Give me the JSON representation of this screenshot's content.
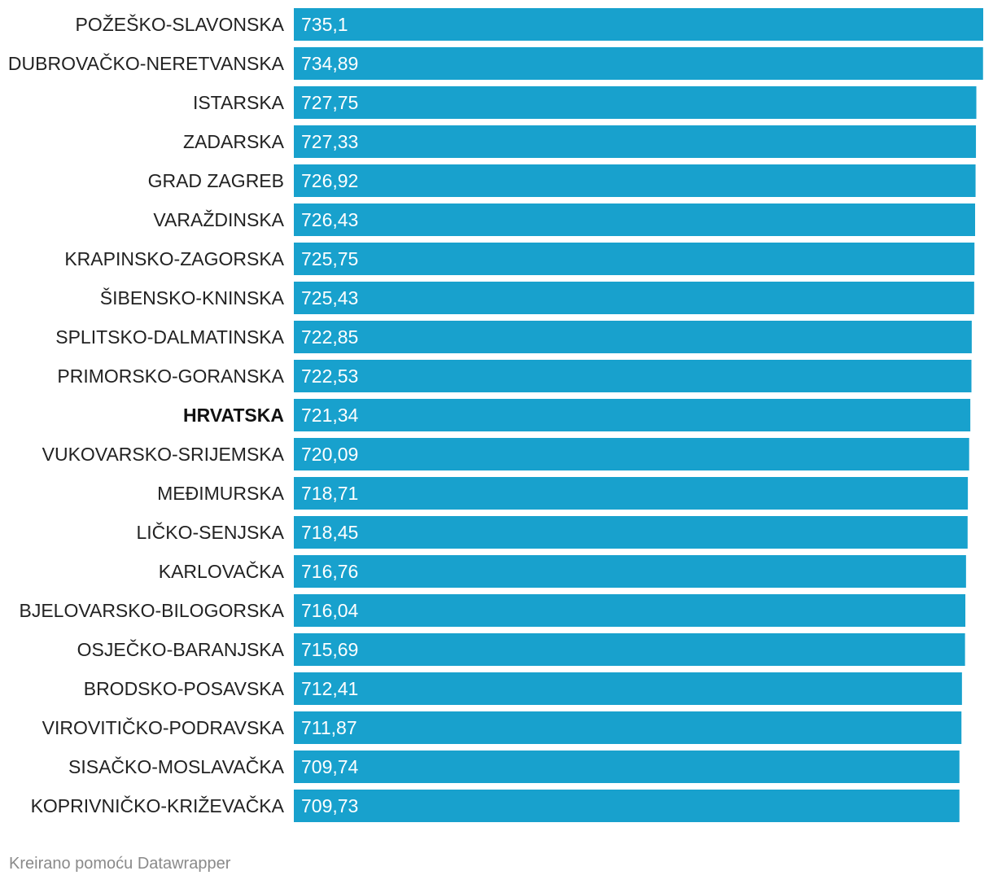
{
  "chart_data": {
    "type": "bar",
    "orientation": "horizontal",
    "categories": [
      "POŽEŠKO-SLAVONSKA",
      "DUBROVAČKO-NERETVANSKA",
      "ISTARSKA",
      "ZADARSKA",
      "GRAD ZAGREB",
      "VARAŽDINSKA",
      "KRAPINSKO-ZAGORSKA",
      "ŠIBENSKO-KNINSKA",
      "SPLITSKO-DALMATINSKA",
      "PRIMORSKO-GORANSKA",
      "HRVATSKA",
      "VUKOVARSKO-SRIJEMSKA",
      "MEĐIMURSKA",
      "LIČKO-SENJSKA",
      "KARLOVAČKA",
      "BJELOVARSKO-BILOGORSKA",
      "OSJEČKO-BARANJSKA",
      "BRODSKO-POSAVSKA",
      "VIROVITIČKO-PODRAVSKA",
      "SISAČKO-MOSLAVAČKA",
      "KOPRIVNIČKO-KRIŽEVAČKA"
    ],
    "values": [
      735.1,
      734.89,
      727.75,
      727.33,
      726.92,
      726.43,
      725.75,
      725.43,
      722.85,
      722.53,
      721.34,
      720.09,
      718.71,
      718.45,
      716.76,
      716.04,
      715.69,
      712.41,
      711.87,
      709.74,
      709.73
    ],
    "value_labels": [
      "735,1",
      "734,89",
      "727,75",
      "727,33",
      "726,92",
      "726,43",
      "725,75",
      "725,43",
      "722,85",
      "722,53",
      "721,34",
      "720,09",
      "718,71",
      "718,45",
      "716,76",
      "716,04",
      "715,69",
      "712,41",
      "711,87",
      "709,74",
      "709,73"
    ],
    "highlight_category": "HRVATSKA",
    "bar_color": "#18a1cd",
    "xlim": [
      0,
      735.1
    ],
    "grid": false,
    "title": "",
    "xlabel": "",
    "ylabel": ""
  },
  "footer": {
    "credit": "Kreirano pomoću Datawrapper"
  }
}
